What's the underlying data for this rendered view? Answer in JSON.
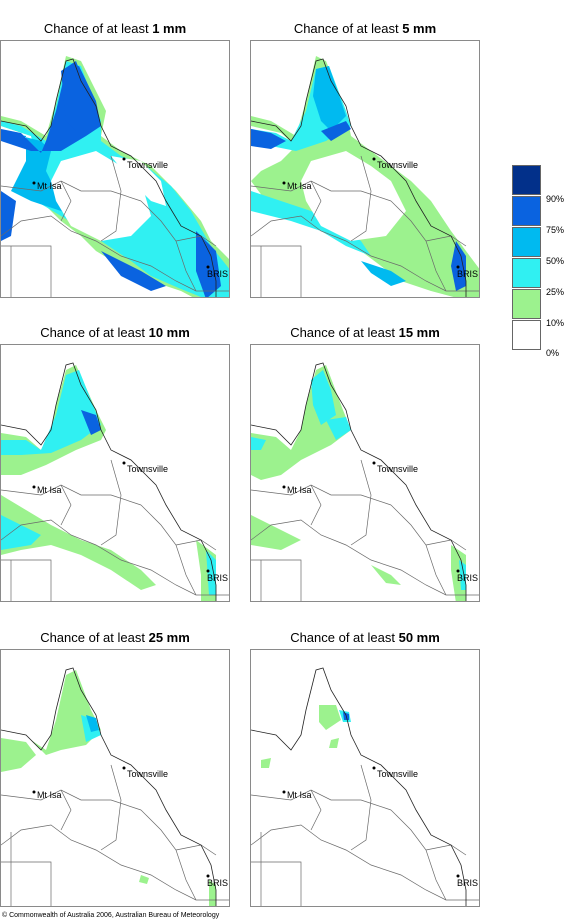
{
  "panels": [
    {
      "title_prefix": "Chance of at least ",
      "threshold": "1 mm"
    },
    {
      "title_prefix": "Chance of at least ",
      "threshold": "5 mm"
    },
    {
      "title_prefix": "Chance of at least ",
      "threshold": "10 mm"
    },
    {
      "title_prefix": "Chance of at least ",
      "threshold": "15 mm"
    },
    {
      "title_prefix": "Chance of at least ",
      "threshold": "25 mm"
    },
    {
      "title_prefix": "Chance of at least ",
      "threshold": "50 mm"
    }
  ],
  "towns": {
    "townsville": "Townsville",
    "mt_isa": "Mt Isa",
    "brisbane": "BRIS"
  },
  "legend": {
    "labels": [
      "90%",
      "75%",
      "50%",
      "25%",
      "10%",
      "0%"
    ],
    "colors": [
      "#02308a",
      "#0a63e0",
      "#00baf0",
      "#30f0f2",
      "#9cf28e",
      "#ffffff"
    ]
  },
  "footer": "© Commonwealth of Australia 2006, Australian Bureau of Meteorology"
}
